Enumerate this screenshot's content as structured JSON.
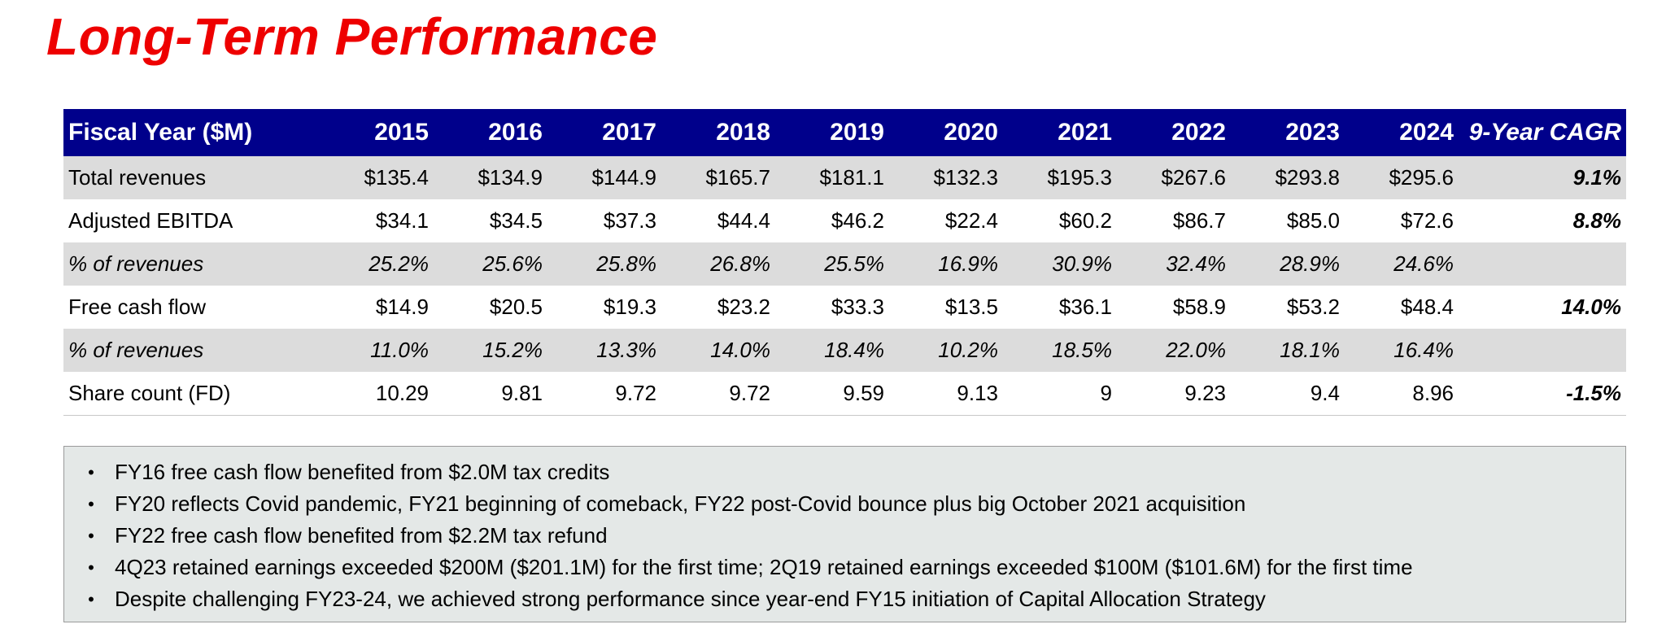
{
  "title": "Long-Term Performance",
  "table": {
    "header": {
      "label": "Fiscal Year ($M)",
      "years": [
        "2015",
        "2016",
        "2017",
        "2018",
        "2019",
        "2020",
        "2021",
        "2022",
        "2023",
        "2024"
      ],
      "cagr": "9-Year CAGR"
    },
    "rows": [
      {
        "label": "Total revenues",
        "values": [
          "$135.4",
          "$134.9",
          "$144.9",
          "$165.7",
          "$181.1",
          "$132.3",
          "$195.3",
          "$267.6",
          "$293.8",
          "$295.6"
        ],
        "cagr": "9.1%"
      },
      {
        "label": "Adjusted EBITDA",
        "values": [
          "$34.1",
          "$34.5",
          "$37.3",
          "$44.4",
          "$46.2",
          "$22.4",
          "$60.2",
          "$86.7",
          "$85.0",
          "$72.6"
        ],
        "cagr": "8.8%"
      },
      {
        "label": "% of revenues",
        "values": [
          "25.2%",
          "25.6%",
          "25.8%",
          "26.8%",
          "25.5%",
          "16.9%",
          "30.9%",
          "32.4%",
          "28.9%",
          "24.6%"
        ],
        "cagr": ""
      },
      {
        "label": "Free cash flow",
        "values": [
          "$14.9",
          "$20.5",
          "$19.3",
          "$23.2",
          "$33.3",
          "$13.5",
          "$36.1",
          "$58.9",
          "$53.2",
          "$48.4"
        ],
        "cagr": "14.0%"
      },
      {
        "label": "% of revenues",
        "values": [
          "11.0%",
          "15.2%",
          "13.3%",
          "14.0%",
          "18.4%",
          "10.2%",
          "18.5%",
          "22.0%",
          "18.1%",
          "16.4%"
        ],
        "cagr": ""
      },
      {
        "label": "Share count (FD)",
        "values": [
          "10.29",
          "9.81",
          "9.72",
          "9.72",
          "9.59",
          "9.13",
          "9",
          "9.23",
          "9.4",
          "8.96"
        ],
        "cagr": "-1.5%"
      }
    ]
  },
  "notes": {
    "bullet": "•",
    "items": [
      "FY16 free cash flow benefited from $2.0M tax credits",
      "FY20 reflects Covid pandemic, FY21 beginning of comeback, FY22 post-Covid bounce plus big October 2021 acquisition",
      "FY22 free cash flow benefited from $2.2M tax refund",
      "4Q23 retained earnings exceeded $200M ($201.1M) for the first time; 2Q19 retained earnings exceeded $100M ($101.6M) for the first time",
      "Despite challenging FY23-24, we achieved strong performance since year-end FY15 initiation of Capital Allocation Strategy"
    ]
  },
  "colors": {
    "title": "#ee0000",
    "header_bg": "#00008b",
    "header_text": "#ffffff",
    "shaded_row": "#dcdcdc",
    "notes_bg": "#e4e8e7"
  }
}
